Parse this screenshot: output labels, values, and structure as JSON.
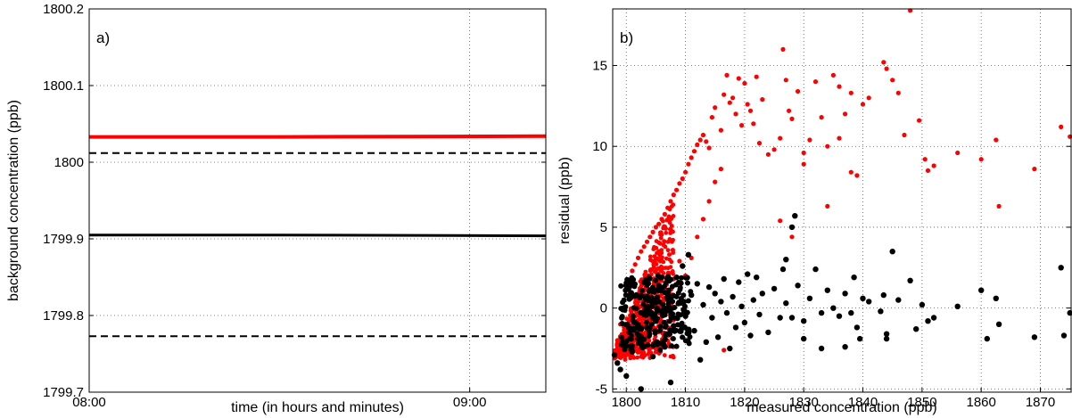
{
  "chart_data": [
    {
      "type": "line",
      "panel_label": "a)",
      "xlabel": "time (in hours and minutes)",
      "ylabel": "background concentration (ppb)",
      "ylim": [
        1799.7,
        1800.2
      ],
      "yticks": [
        "1799.7",
        "1799.8",
        "1799.9",
        "1800",
        "1800.1",
        "1800.2"
      ],
      "xticks": [
        "08:00",
        "09:00"
      ],
      "xlim": [
        "08:00",
        "09:12"
      ],
      "grid": true,
      "series": [
        {
          "color": "#ff0000",
          "style": "solid",
          "x": [
            "08:00",
            "08:30",
            "09:12"
          ],
          "y": [
            1800.033,
            1800.033,
            1800.034
          ]
        },
        {
          "color": "#000000",
          "style": "dashed",
          "x": [
            "08:00",
            "09:12"
          ],
          "y": [
            1800.012,
            1800.012
          ]
        },
        {
          "color": "#000000",
          "style": "solid",
          "x": [
            "08:00",
            "08:30",
            "09:12"
          ],
          "y": [
            1799.905,
            1799.905,
            1799.904
          ]
        },
        {
          "color": "#000000",
          "style": "dashed",
          "x": [
            "08:00",
            "09:12"
          ],
          "y": [
            1799.773,
            1799.773
          ]
        }
      ]
    },
    {
      "type": "scatter",
      "panel_label": "b)",
      "xlabel": "measured concentration (ppb)",
      "ylabel": "residual (ppb)",
      "xlim": [
        1797.7,
        1875.2
      ],
      "ylim": [
        -5.2,
        18.5
      ],
      "xticks": [
        "1800",
        "1810",
        "1820",
        "1830",
        "1840",
        "1850",
        "1860",
        "1870"
      ],
      "yticks": [
        "-5",
        "0",
        "5",
        "10",
        "15"
      ],
      "grid": true,
      "series": [
        {
          "color": "#ff0000",
          "points": [
            [
              1798,
              -2.8
            ],
            [
              1798.5,
              -2.0
            ],
            [
              1799,
              -1.0
            ],
            [
              1799.5,
              0.0
            ],
            [
              1800,
              0.8
            ],
            [
              1800.5,
              1.6
            ],
            [
              1801,
              2.3
            ],
            [
              1801.5,
              2.7
            ],
            [
              1802,
              3.1
            ],
            [
              1802.5,
              3.5
            ],
            [
              1803,
              3.8
            ],
            [
              1803.5,
              4.1
            ],
            [
              1804,
              4.4
            ],
            [
              1804.5,
              4.7
            ],
            [
              1805,
              5.0
            ],
            [
              1805.5,
              5.2
            ],
            [
              1806,
              5.5
            ],
            [
              1806.5,
              5.8
            ],
            [
              1807,
              6.2
            ],
            [
              1807.5,
              6.6
            ],
            [
              1808,
              7.0
            ],
            [
              1808.5,
              7.3
            ],
            [
              1809,
              7.7
            ],
            [
              1809.5,
              8.0
            ],
            [
              1810,
              8.4
            ],
            [
              1810.5,
              8.9
            ],
            [
              1811,
              9.3
            ],
            [
              1811.5,
              9.7
            ],
            [
              1812,
              10.1
            ],
            [
              1812.5,
              10.4
            ],
            [
              1813,
              10.7
            ],
            [
              1813.5,
              10.3
            ],
            [
              1814,
              9.9
            ],
            [
              1814.5,
              11.8
            ],
            [
              1815,
              12.4
            ],
            [
              1816,
              11.0
            ],
            [
              1816.5,
              13.2
            ],
            [
              1817,
              14.4
            ],
            [
              1817.5,
              12.7
            ],
            [
              1818,
              13.0
            ],
            [
              1818.5,
              12.0
            ],
            [
              1819,
              14.2
            ],
            [
              1819.5,
              11.3
            ],
            [
              1820,
              13.9
            ],
            [
              1820.5,
              12.6
            ],
            [
              1821,
              12.2
            ],
            [
              1821.5,
              11.4
            ],
            [
              1822,
              14.3
            ],
            [
              1822.5,
              10.2
            ],
            [
              1823,
              12.9
            ],
            [
              1824,
              9.5
            ],
            [
              1825,
              9.8
            ],
            [
              1826,
              10.5
            ],
            [
              1826.5,
              16.0
            ],
            [
              1827,
              14.1
            ],
            [
              1827.5,
              12.2
            ],
            [
              1828,
              11.7
            ],
            [
              1829,
              13.4
            ],
            [
              1830,
              9.6
            ],
            [
              1831,
              10.4
            ],
            [
              1832,
              14.0
            ],
            [
              1833,
              11.8
            ],
            [
              1834,
              10.0
            ],
            [
              1835,
              14.4
            ],
            [
              1836,
              13.7
            ],
            [
              1837,
              12.0
            ],
            [
              1838,
              13.3
            ],
            [
              1839,
              8.2
            ],
            [
              1840,
              12.6
            ],
            [
              1841,
              13.0
            ],
            [
              1843.5,
              15.2
            ],
            [
              1844,
              14.8
            ],
            [
              1845,
              14.1
            ],
            [
              1846,
              13.3
            ],
            [
              1847,
              10.7
            ],
            [
              1848,
              18.4
            ],
            [
              1849.5,
              11.6
            ],
            [
              1850.5,
              9.2
            ],
            [
              1851,
              8.5
            ],
            [
              1852,
              8.8
            ],
            [
              1856,
              9.6
            ],
            [
              1860,
              9.2
            ],
            [
              1862.5,
              10.4
            ],
            [
              1863,
              6.3
            ],
            [
              1869,
              8.6
            ],
            [
              1873.5,
              11.2
            ],
            [
              1875,
              10.6
            ],
            [
              1810,
              2.0
            ],
            [
              1811,
              3.1
            ],
            [
              1812,
              4.4
            ],
            [
              1813,
              5.5
            ],
            [
              1814,
              6.6
            ],
            [
              1815,
              7.8
            ],
            [
              1816,
              8.6
            ],
            [
              1808,
              1.8
            ],
            [
              1809,
              2.9
            ],
            [
              1807,
              0.6
            ],
            [
              1806,
              -0.2
            ],
            [
              1805,
              -0.8
            ],
            [
              1804,
              -1.3
            ],
            [
              1803,
              -1.8
            ],
            [
              1802,
              -2.2
            ],
            [
              1816.5,
              -2.6
            ],
            [
              1826,
              5.4
            ],
            [
              1828,
              4.4
            ],
            [
              1830,
              8.9
            ],
            [
              1834,
              6.3
            ],
            [
              1836,
              10.5
            ],
            [
              1838,
              8.4
            ]
          ]
        },
        {
          "color": "#000000",
          "points": [
            [
              1798,
              -2.9
            ],
            [
              1798.5,
              -3.4
            ],
            [
              1799,
              -3.8
            ],
            [
              1799.5,
              -2.1
            ],
            [
              1800,
              -4.2
            ],
            [
              1800.5,
              -1.5
            ],
            [
              1801,
              -2.7
            ],
            [
              1801.5,
              -0.9
            ],
            [
              1802,
              -1.9
            ],
            [
              1802.5,
              -5.0
            ],
            [
              1803,
              -0.4
            ],
            [
              1803.5,
              -1.2
            ],
            [
              1804,
              0.6
            ],
            [
              1804.5,
              -3.0
            ],
            [
              1805,
              -0.8
            ],
            [
              1805.5,
              1.1
            ],
            [
              1806,
              -0.2
            ],
            [
              1806.5,
              -2.4
            ],
            [
              1807,
              0.9
            ],
            [
              1807.5,
              -4.6
            ],
            [
              1808,
              -1.1
            ],
            [
              1808.5,
              1.9
            ],
            [
              1809,
              0.3
            ],
            [
              1809.5,
              2.6
            ],
            [
              1810,
              -0.5
            ],
            [
              1810.5,
              3.3
            ],
            [
              1811,
              0.8
            ],
            [
              1811.5,
              -1.4
            ],
            [
              1812,
              1.5
            ],
            [
              1812.5,
              -3.2
            ],
            [
              1813,
              0.2
            ],
            [
              1813.5,
              -2.1
            ],
            [
              1814,
              1.3
            ],
            [
              1814.5,
              -0.6
            ],
            [
              1815,
              0.9
            ],
            [
              1815.5,
              -1.8
            ],
            [
              1816,
              0.4
            ],
            [
              1816.5,
              1.8
            ],
            [
              1817,
              -0.3
            ],
            [
              1817.5,
              -2.5
            ],
            [
              1818,
              0.7
            ],
            [
              1818.5,
              -1.2
            ],
            [
              1819,
              1.6
            ],
            [
              1819.5,
              0.1
            ],
            [
              1820,
              -0.9
            ],
            [
              1820.5,
              2.1
            ],
            [
              1821,
              -1.7
            ],
            [
              1821.5,
              0.5
            ],
            [
              1822,
              1.9
            ],
            [
              1822.5,
              -0.4
            ],
            [
              1823,
              0.9
            ],
            [
              1824,
              -1.5
            ],
            [
              1825,
              1.2
            ],
            [
              1826,
              -0.6
            ],
            [
              1826.5,
              2.4
            ],
            [
              1827,
              0.3
            ],
            [
              1828,
              5.0
            ],
            [
              1828.5,
              5.7
            ],
            [
              1829,
              1.4
            ],
            [
              1830,
              -0.8
            ],
            [
              1831,
              0.6
            ],
            [
              1832,
              2.4
            ],
            [
              1833,
              -0.3
            ],
            [
              1834,
              1.1
            ],
            [
              1835,
              0.0
            ],
            [
              1836,
              -0.5
            ],
            [
              1837,
              0.9
            ],
            [
              1838,
              -0.3
            ],
            [
              1838.5,
              1.9
            ],
            [
              1839,
              -1.2
            ],
            [
              1840,
              0.6
            ],
            [
              1841,
              0.4
            ],
            [
              1843,
              -0.2
            ],
            [
              1843.5,
              0.8
            ],
            [
              1844,
              -1.6
            ],
            [
              1845,
              3.5
            ],
            [
              1846,
              0.5
            ],
            [
              1848,
              1.7
            ],
            [
              1849,
              -1.3
            ],
            [
              1850,
              0.2
            ],
            [
              1851,
              -0.8
            ],
            [
              1852,
              -0.6
            ],
            [
              1856,
              0.1
            ],
            [
              1860,
              1.1
            ],
            [
              1861,
              -1.9
            ],
            [
              1862.5,
              0.6
            ],
            [
              1863,
              -1.0
            ],
            [
              1869,
              -1.8
            ],
            [
              1873.5,
              2.5
            ],
            [
              1874,
              -1.7
            ],
            [
              1875,
              -0.3
            ],
            [
              1827,
              3.0
            ],
            [
              1828,
              -0.6
            ],
            [
              1830,
              -1.9
            ],
            [
              1833,
              -2.5
            ],
            [
              1837,
              -2.4
            ],
            [
              1839.5,
              -1.9
            ],
            [
              1844,
              -1.9
            ]
          ]
        }
      ]
    }
  ]
}
